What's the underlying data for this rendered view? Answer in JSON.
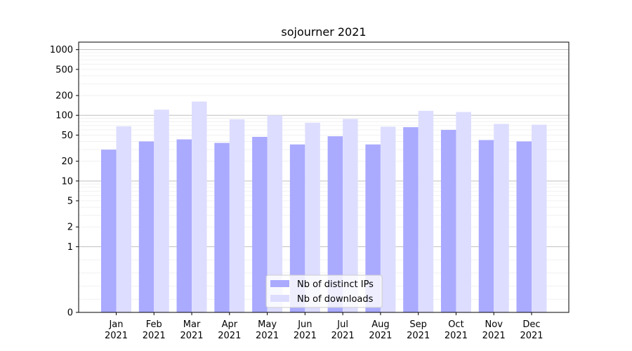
{
  "chart_data": {
    "type": "bar",
    "title": "sojourner 2021",
    "xlabel": "",
    "ylabel": "",
    "yscale": "symlog",
    "ylim": [
      0,
      1300
    ],
    "yticks": [
      0,
      1,
      2,
      5,
      10,
      20,
      50,
      100,
      200,
      500,
      1000
    ],
    "ytick_labels": [
      "0",
      "1",
      "2",
      "5",
      "10",
      "20",
      "50",
      "100",
      "200",
      "500",
      "1000"
    ],
    "categories": [
      "Jan\n2021",
      "Feb\n2021",
      "Mar\n2021",
      "Apr\n2021",
      "May\n2021",
      "Jun\n2021",
      "Jul\n2021",
      "Aug\n2021",
      "Sep\n2021",
      "Oct\n2021",
      "Nov\n2021",
      "Dec\n2021"
    ],
    "series": [
      {
        "name": "Nb of distinct IPs",
        "color": "#aaaaff",
        "values": [
          30,
          40,
          43,
          38,
          47,
          36,
          48,
          36,
          66,
          60,
          42,
          40
        ]
      },
      {
        "name": "Nb of downloads",
        "color": "#ddddff",
        "values": [
          68,
          122,
          162,
          87,
          100,
          77,
          88,
          67,
          117,
          112,
          74,
          72
        ]
      }
    ],
    "grid": true,
    "legend": "bottom-center"
  }
}
